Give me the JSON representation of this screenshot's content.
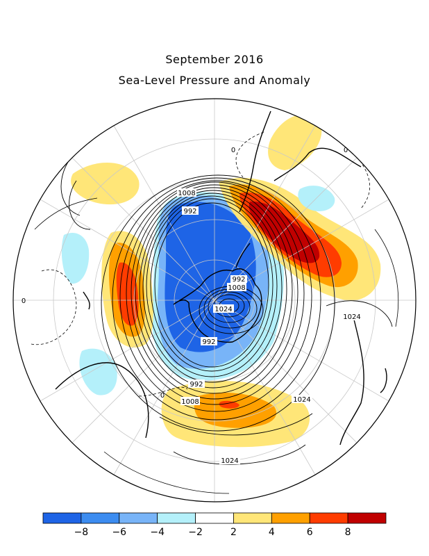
{
  "title": "September 2016",
  "subtitle": "Sea-Level Pressure and Anomaly",
  "map": {
    "projection": "south-polar-stereographic",
    "contour_labels": [
      "1008",
      "992",
      "1008",
      "992",
      "1024",
      "992",
      "992",
      "1008",
      "1024",
      "1024",
      "1024",
      "0",
      "0",
      "0",
      "0"
    ]
  },
  "legend": {
    "colors": [
      "#1e64e6",
      "#3c8cf0",
      "#78b4f8",
      "#b4f0fa",
      "#ffffff",
      "#ffe678",
      "#ffa000",
      "#ff3c00",
      "#c00000"
    ],
    "tick_labels": [
      "-8",
      "-6",
      "-4",
      "-2",
      "2",
      "4",
      "6",
      "8"
    ]
  }
}
